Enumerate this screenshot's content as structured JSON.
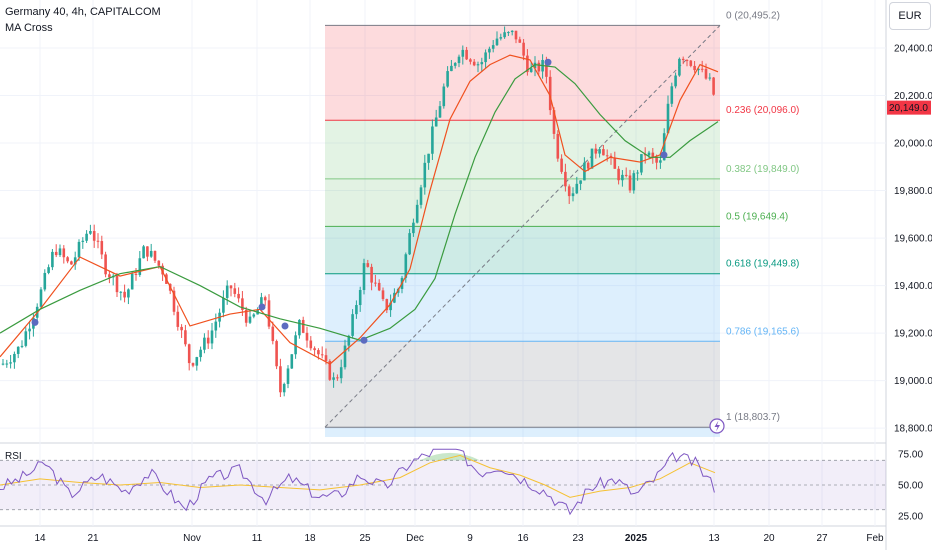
{
  "header": {
    "symbol_line": "Germany 40, 4h, CAPITALCOM",
    "indicator": "MA Cross",
    "currency": "EUR"
  },
  "colors": {
    "up": "#26a69a",
    "down": "#ef5350",
    "ma_fast": "#f0511f",
    "ma_slow": "#3a9b3f",
    "rsi": "#7e57c2",
    "rsi_ma": "#f5c133",
    "price_tag": "#f23645"
  },
  "chart_data": [
    {
      "type": "candlestick",
      "title": "Germany 40, 4h, CAPITALCOM",
      "ylim": [
        18750,
        20560
      ],
      "y_ticks": [
        18800,
        19000,
        19200,
        19400,
        19600,
        19800,
        20000,
        20200,
        20400
      ],
      "y_tick_labels": [
        "18,800.0",
        "19,000.0",
        "19,200.0",
        "19,400.0",
        "19,600.0",
        "19,800.0",
        "20,000.0",
        "20,200.0",
        "20,400.0"
      ],
      "x_ticks": [
        "14",
        "21",
        "Nov",
        "11",
        "18",
        "25",
        "Dec",
        "9",
        "16",
        "23",
        "2025",
        "13",
        "20",
        "27",
        "Feb"
      ],
      "last_price": "20,149.0",
      "price_path": [
        [
          0,
          19060
        ],
        [
          20,
          19140
        ],
        [
          40,
          19360
        ],
        [
          55,
          19560
        ],
        [
          70,
          19480
        ],
        [
          90,
          19650
        ],
        [
          105,
          19480
        ],
        [
          125,
          19350
        ],
        [
          145,
          19560
        ],
        [
          165,
          19450
        ],
        [
          190,
          19070
        ],
        [
          210,
          19190
        ],
        [
          230,
          19400
        ],
        [
          250,
          19240
        ],
        [
          265,
          19350
        ],
        [
          280,
          18950
        ],
        [
          300,
          19240
        ],
        [
          320,
          19100
        ],
        [
          335,
          18990
        ],
        [
          350,
          19200
        ],
        [
          365,
          19500
        ],
        [
          385,
          19300
        ],
        [
          400,
          19400
        ],
        [
          415,
          19730
        ],
        [
          430,
          20000
        ],
        [
          445,
          20250
        ],
        [
          460,
          20400
        ],
        [
          480,
          20330
        ],
        [
          495,
          20440
        ],
        [
          515,
          20460
        ],
        [
          530,
          20300
        ],
        [
          545,
          20330
        ],
        [
          555,
          20000
        ],
        [
          570,
          19780
        ],
        [
          585,
          19900
        ],
        [
          600,
          20000
        ],
        [
          615,
          19880
        ],
        [
          630,
          19820
        ],
        [
          645,
          19960
        ],
        [
          660,
          19900
        ],
        [
          670,
          20210
        ],
        [
          680,
          20380
        ],
        [
          695,
          20330
        ],
        [
          710,
          20250
        ],
        [
          718,
          20149
        ]
      ],
      "ma_fast_path": [
        [
          0,
          19100
        ],
        [
          40,
          19300
        ],
        [
          80,
          19520
        ],
        [
          120,
          19440
        ],
        [
          160,
          19480
        ],
        [
          190,
          19230
        ],
        [
          230,
          19280
        ],
        [
          260,
          19300
        ],
        [
          290,
          19160
        ],
        [
          330,
          19070
        ],
        [
          360,
          19180
        ],
        [
          390,
          19320
        ],
        [
          410,
          19470
        ],
        [
          430,
          19800
        ],
        [
          450,
          20100
        ],
        [
          470,
          20260
        ],
        [
          490,
          20330
        ],
        [
          510,
          20370
        ],
        [
          530,
          20350
        ],
        [
          550,
          20200
        ],
        [
          565,
          19950
        ],
        [
          585,
          19880
        ],
        [
          610,
          19940
        ],
        [
          640,
          19920
        ],
        [
          660,
          19950
        ],
        [
          680,
          20180
        ],
        [
          700,
          20330
        ],
        [
          718,
          20300
        ]
      ],
      "ma_slow_path": [
        [
          0,
          19200
        ],
        [
          40,
          19300
        ],
        [
          80,
          19380
        ],
        [
          120,
          19450
        ],
        [
          160,
          19480
        ],
        [
          200,
          19400
        ],
        [
          240,
          19310
        ],
        [
          280,
          19260
        ],
        [
          320,
          19220
        ],
        [
          360,
          19170
        ],
        [
          390,
          19220
        ],
        [
          415,
          19300
        ],
        [
          435,
          19430
        ],
        [
          455,
          19700
        ],
        [
          475,
          19940
        ],
        [
          495,
          20130
        ],
        [
          515,
          20270
        ],
        [
          535,
          20330
        ],
        [
          555,
          20320
        ],
        [
          575,
          20250
        ],
        [
          600,
          20120
        ],
        [
          625,
          20010
        ],
        [
          650,
          19940
        ],
        [
          670,
          19940
        ],
        [
          690,
          20010
        ],
        [
          718,
          20090
        ]
      ]
    },
    {
      "type": "fibonacci_retracement",
      "start_price": 18803.7,
      "end_price": 20495.2,
      "levels": [
        {
          "ratio": "0",
          "price": "20,495.2",
          "value": 20495.2,
          "color": "#787b86",
          "fill": null
        },
        {
          "ratio": "0.236",
          "price": "20,096.0",
          "value": 20096.0,
          "color": "#f23645",
          "fill": "rgba(242,54,69,0.18)"
        },
        {
          "ratio": "0.382",
          "price": "19,849.0",
          "value": 19849.0,
          "color": "#81c784",
          "fill": "rgba(129,199,132,0.22)"
        },
        {
          "ratio": "0.5",
          "price": "19,649.4",
          "value": 19649.4,
          "color": "#4caf50",
          "fill": "rgba(76,175,80,0.16)"
        },
        {
          "ratio": "0.618",
          "price": "19,449.8",
          "value": 19449.8,
          "color": "#089981",
          "fill": "rgba(8,153,129,0.2)"
        },
        {
          "ratio": "0.786",
          "price": "19,165.6",
          "value": 19165.6,
          "color": "#64b5f6",
          "fill": "rgba(100,181,246,0.22)"
        },
        {
          "ratio": "1",
          "price": "18,803.7",
          "value": 18803.7,
          "color": "#787b86",
          "fill": "rgba(120,123,134,0.2)"
        }
      ]
    },
    {
      "type": "line",
      "title": "RSI",
      "ylim": [
        20,
        80
      ],
      "y_ticks": [
        25,
        50,
        75
      ],
      "y_tick_labels": [
        "25.00",
        "50.00",
        "75.00"
      ],
      "bands": [
        30,
        70
      ],
      "series": [
        {
          "name": "RSI",
          "values": [
            [
              0,
              48
            ],
            [
              20,
              55
            ],
            [
              45,
              68
            ],
            [
              70,
              42
            ],
            [
              100,
              58
            ],
            [
              125,
              45
            ],
            [
              150,
              60
            ],
            [
              185,
              30
            ],
            [
              210,
              55
            ],
            [
              240,
              62
            ],
            [
              265,
              38
            ],
            [
              290,
              56
            ],
            [
              320,
              40
            ],
            [
              340,
              42
            ],
            [
              360,
              58
            ],
            [
              385,
              48
            ],
            [
              410,
              68
            ],
            [
              430,
              76
            ],
            [
              455,
              80
            ],
            [
              480,
              60
            ],
            [
              500,
              66
            ],
            [
              520,
              56
            ],
            [
              545,
              45
            ],
            [
              570,
              28
            ],
            [
              590,
              48
            ],
            [
              615,
              55
            ],
            [
              635,
              42
            ],
            [
              655,
              55
            ],
            [
              675,
              74
            ],
            [
              695,
              68
            ],
            [
              715,
              48
            ]
          ]
        },
        {
          "values": [
            [
              0,
              50
            ],
            [
              40,
              55
            ],
            [
              80,
              52
            ],
            [
              120,
              50
            ],
            [
              160,
              52
            ],
            [
              200,
              48
            ],
            [
              240,
              50
            ],
            [
              280,
              48
            ],
            [
              320,
              46
            ],
            [
              360,
              50
            ],
            [
              400,
              56
            ],
            [
              430,
              68
            ],
            [
              460,
              74
            ],
            [
              490,
              64
            ],
            [
              520,
              58
            ],
            [
              545,
              50
            ],
            [
              570,
              40
            ],
            [
              600,
              45
            ],
            [
              630,
              48
            ],
            [
              660,
              55
            ],
            [
              690,
              68
            ],
            [
              715,
              60
            ]
          ]
        }
      ]
    }
  ]
}
